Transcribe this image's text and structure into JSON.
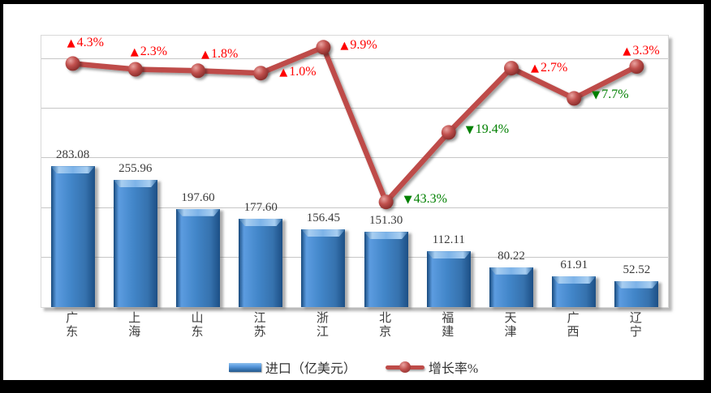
{
  "colors": {
    "frame": "#000000",
    "canvas": "#ffffff",
    "gridline": "#c6c6c6",
    "bar_blue": "#3f81c1",
    "line_red": "#be4b48",
    "label_up_red": "#ff0000",
    "label_down_green": "#008000"
  },
  "chart_data": {
    "type": "bar",
    "subtype": "combo-bar-line",
    "title": "",
    "categories": [
      "广东",
      "上海",
      "山东",
      "江苏",
      "浙江",
      "北京",
      "福建",
      "天津",
      "广西",
      "辽宁"
    ],
    "series": [
      {
        "name": "进口（亿美元）",
        "type": "bar",
        "color": "#3f81c1",
        "values": [
          283.08,
          255.96,
          197.6,
          177.6,
          156.45,
          151.3,
          112.11,
          80.22,
          61.91,
          52.52
        ],
        "value_labels": [
          "283.08",
          "255.96",
          "197.60",
          "177.60",
          "156.45",
          "151.30",
          "112.11",
          "80.22",
          "61.91",
          "52.52"
        ]
      },
      {
        "name": "增长率%",
        "type": "line",
        "color": "#be4b48",
        "values": [
          4.3,
          2.3,
          1.8,
          1.0,
          9.9,
          -43.3,
          -19.4,
          2.7,
          -7.7,
          3.3
        ],
        "point_labels": [
          {
            "glyph": "▲",
            "text": "4.3%",
            "color": "#ff0000"
          },
          {
            "glyph": "▲",
            "text": "2.3%",
            "color": "#ff0000"
          },
          {
            "glyph": "▲",
            "text": "1.8%",
            "color": "#ff0000"
          },
          {
            "glyph": "▲",
            "text": "1.0%",
            "color": "#ff0000"
          },
          {
            "glyph": "▲",
            "text": "9.9%",
            "color": "#ff0000"
          },
          {
            "glyph": "▼",
            "text": "43.3%",
            "color": "#008000"
          },
          {
            "glyph": "▼",
            "text": "19.4%",
            "color": "#008000"
          },
          {
            "glyph": "▲",
            "text": "2.7%",
            "color": "#ff0000"
          },
          {
            "glyph": "▼",
            "text": "7.7%",
            "color": "#008000"
          },
          {
            "glyph": "▲",
            "text": "3.3%",
            "color": "#ff0000"
          }
        ]
      }
    ],
    "primary_axis": {
      "min": 0,
      "max": 546,
      "gridline_interval": 100,
      "tick_labels_visible": false
    },
    "secondary_axis": {
      "tick_labels_visible": false
    },
    "grid": true,
    "legend_position": "bottom"
  },
  "legend": {
    "bar_label": "进口（亿美元）",
    "line_label": "增长率%"
  }
}
